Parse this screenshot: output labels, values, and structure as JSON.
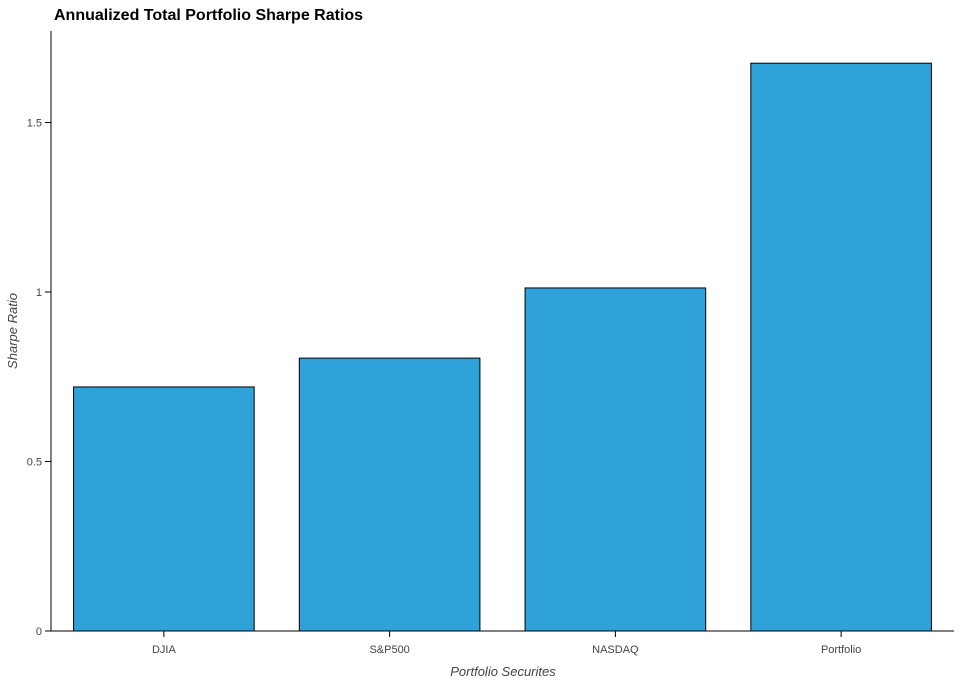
{
  "chart_data": {
    "type": "bar",
    "title": "Annualized Total Portfolio Sharpe Ratios",
    "xlabel": "Portfolio Securites",
    "ylabel": "Sharpe Ratio",
    "categories": [
      "DJIA",
      "S&P500",
      "NASDAQ",
      "Portfolio"
    ],
    "values": [
      0.72,
      0.805,
      1.012,
      1.675
    ],
    "ylim": [
      0,
      1.77
    ],
    "yticks": [
      0,
      0.5,
      1,
      1.5
    ],
    "ytick_labels": [
      "0",
      "0.5",
      "1",
      "1.5"
    ],
    "grid": false,
    "legend": "none",
    "colors": {
      "bar_fill": "#30a2da",
      "bar_stroke": "#000000",
      "axis": "#000000",
      "text": "#444444",
      "background": "#ffffff"
    }
  }
}
